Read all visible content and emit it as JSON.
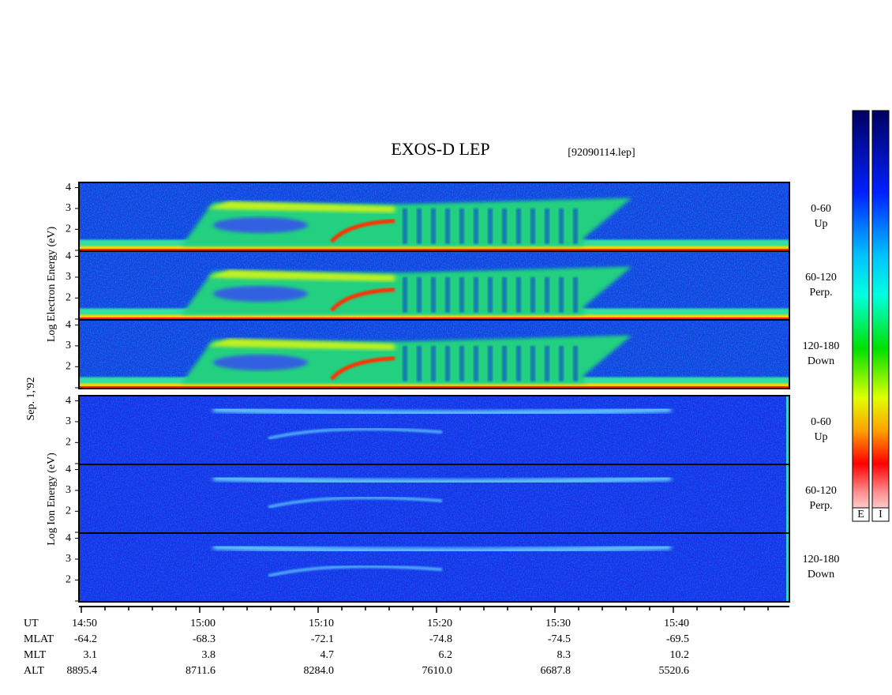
{
  "title": "EXOS-D LEP",
  "file": "[92090114.lep]",
  "date": "Sep. 1,'92",
  "electron_axis_label": "Log Electron Energy (eV)",
  "ion_axis_label": "Log Ion Energy (eV)",
  "ylim": [
    0.95,
    4.25
  ],
  "yticks": [
    2,
    3,
    4
  ],
  "panels": [
    {
      "species": "electron",
      "angle": "0-60",
      "direction": "Up"
    },
    {
      "species": "electron",
      "angle": "60-120",
      "direction": "Perp."
    },
    {
      "species": "electron",
      "angle": "120-180",
      "direction": "Down"
    },
    {
      "species": "ion",
      "angle": "0-60",
      "direction": "Up"
    },
    {
      "species": "ion",
      "angle": "60-120",
      "direction": "Perp."
    },
    {
      "species": "ion",
      "angle": "120-180",
      "direction": "Down"
    }
  ],
  "colorbars": [
    "E",
    "I"
  ],
  "table": {
    "rows": [
      {
        "name": "UT",
        "values": [
          "14:50",
          "15:00",
          "15:10",
          "15:20",
          "15:30",
          "15:40"
        ]
      },
      {
        "name": "MLAT",
        "values": [
          "-64.2",
          "-68.3",
          "-72.1",
          "-74.8",
          "-74.5",
          "-69.5"
        ]
      },
      {
        "name": "MLT",
        "values": [
          "3.1",
          "3.8",
          "4.7",
          "6.2",
          "8.3",
          "10.2"
        ]
      },
      {
        "name": "ALT",
        "values": [
          "8895.4",
          "8711.6",
          "8284.0",
          "7610.0",
          "6687.8",
          "5520.6"
        ]
      }
    ]
  }
}
